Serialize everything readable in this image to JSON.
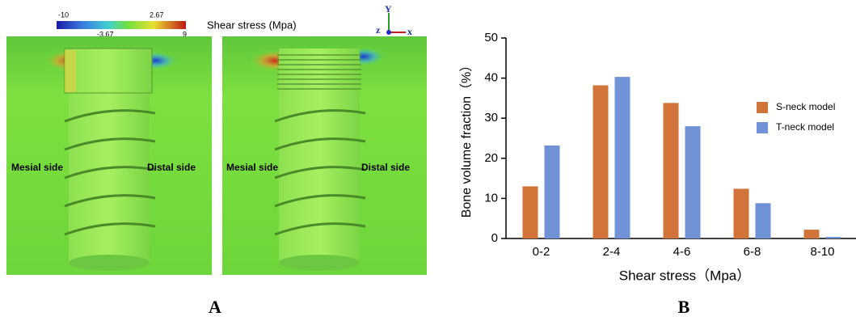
{
  "panel_a": {
    "colorbar_title": "Shear stress (Mpa)",
    "colorbar_labels": [
      "-10",
      "2.67",
      "-3.67",
      "9"
    ],
    "axes": [
      "Y",
      "z",
      "x"
    ],
    "left_image": {
      "mesial": "Mesial side",
      "distal": "Distal side"
    },
    "right_image": {
      "mesial": "Mesial side",
      "distal": "Distal side"
    }
  },
  "panel_labels": [
    "A",
    "B"
  ],
  "chart_data": {
    "type": "bar",
    "x_label": "Shear stress（Mpa）",
    "y_label": "Bone volume fraction（%）",
    "categories": [
      "0-2",
      "2-4",
      "4-6",
      "6-8",
      "8-10"
    ],
    "series": [
      {
        "name": "S-neck model",
        "color": "#d2743a",
        "values": [
          13,
          38.2,
          33.8,
          12.4,
          2.2
        ]
      },
      {
        "name": "T-neck model",
        "color": "#6f93d6",
        "values": [
          23.2,
          40.3,
          28,
          8.8,
          0.4
        ]
      }
    ],
    "ylim": [
      0,
      50
    ],
    "yticks": [
      0,
      10,
      20,
      30,
      40,
      50
    ],
    "grid": false,
    "legend": "right"
  }
}
